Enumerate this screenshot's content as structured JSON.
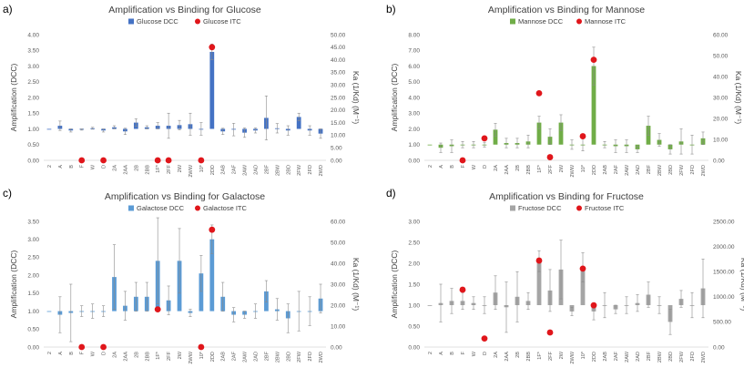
{
  "chart_data": [
    {
      "type": "bar",
      "panel_label": "a)",
      "title": "Amplification vs Binding for Glucose",
      "legend": [
        "Glucose DCC",
        "Glucose ITC"
      ],
      "colors": {
        "bar": "#4472c4",
        "itc": "#e0161b"
      },
      "ylabel": "Amplification (DCC)",
      "y2label": "Ka (1/Kd) (M⁻¹)",
      "ylim": [
        0,
        4
      ],
      "yticks": [
        "0.00",
        "0.50",
        "1.00",
        "1.50",
        "2.00",
        "2.50",
        "3.00",
        "3.50",
        "4.00"
      ],
      "y2lim": [
        0,
        50
      ],
      "y2ticks": [
        "0.00",
        "5.00",
        "10.00",
        "15.00",
        "20.00",
        "25.00",
        "30.00",
        "35.00",
        "40.00",
        "45.00",
        "50.00"
      ],
      "categories": [
        "2",
        "A",
        "B",
        "F",
        "W",
        "D",
        "2A",
        "2AA",
        "2B",
        "2BB",
        "1F*",
        "2FF",
        "2W",
        "2WW",
        "10*",
        "2DD",
        "2AB",
        "2AF",
        "2AW",
        "2AD",
        "2BF",
        "2BW",
        "2BD",
        "2FW",
        "2FD",
        "2WD"
      ],
      "values": [
        1.0,
        1.1,
        0.95,
        0.98,
        1.02,
        0.95,
        1.05,
        0.92,
        1.2,
        1.05,
        1.1,
        1.1,
        1.12,
        1.15,
        1.0,
        3.45,
        0.92,
        0.98,
        0.88,
        0.95,
        1.35,
        1.02,
        0.95,
        1.38,
        0.95,
        0.85
      ],
      "errors": [
        0,
        0.15,
        0.05,
        0.02,
        0.03,
        0.05,
        0.05,
        0.1,
        0.12,
        0.05,
        0.1,
        0.4,
        0.15,
        0.35,
        0.2,
        0.25,
        0.1,
        0.2,
        0.15,
        0.08,
        0.7,
        0.15,
        0.15,
        0.12,
        0.15,
        0.15
      ],
      "itc": [
        {
          "category": "F",
          "value": 0
        },
        {
          "category": "D",
          "value": 0
        },
        {
          "category": "1F*",
          "value": 0
        },
        {
          "category": "2FF",
          "value": 0
        },
        {
          "category": "10*",
          "value": 0
        },
        {
          "category": "2DD",
          "value": 45
        }
      ]
    },
    {
      "type": "bar",
      "panel_label": "b)",
      "title": "Amplification vs Binding for Mannose",
      "legend": [
        "Mannose DCC",
        "Mannose ITC"
      ],
      "colors": {
        "bar": "#70ad47",
        "itc": "#e0161b"
      },
      "ylabel": "Amplification (DCC)",
      "y2label": "Ka (1/Kd) (M⁻¹)",
      "ylim": [
        0,
        8
      ],
      "yticks": [
        "0.00",
        "1.00",
        "2.00",
        "3.00",
        "4.00",
        "5.00",
        "6.00",
        "7.00",
        "8.00"
      ],
      "y2lim": [
        0,
        60
      ],
      "y2ticks": [
        "0.00",
        "10.00",
        "20.00",
        "30.00",
        "40.00",
        "50.00",
        "60.00"
      ],
      "categories": [
        "2",
        "A",
        "B",
        "F",
        "W",
        "D",
        "2A",
        "2AA",
        "2B",
        "2BB",
        "1F*",
        "2FF",
        "2W",
        "2WW",
        "10*",
        "2DD",
        "2AB",
        "2AF",
        "2AW",
        "2AD",
        "2BF",
        "2BW",
        "2BD",
        "2FW",
        "2FD",
        "2WD"
      ],
      "values": [
        1.0,
        0.8,
        0.9,
        1.0,
        1.0,
        1.0,
        1.95,
        1.1,
        1.1,
        1.2,
        2.4,
        1.5,
        2.4,
        1.0,
        1.0,
        6.0,
        1.0,
        0.9,
        0.9,
        0.7,
        2.2,
        1.3,
        0.7,
        1.2,
        1.0,
        1.4
      ],
      "errors": [
        0,
        0.3,
        0.4,
        0.2,
        0.2,
        0.15,
        0.4,
        0.3,
        0.3,
        0.4,
        0.4,
        0.5,
        0.5,
        0.3,
        0.4,
        1.2,
        0.2,
        0.4,
        0.4,
        0.2,
        0.6,
        0.4,
        0.3,
        0.8,
        0.6,
        0.4
      ],
      "itc": [
        {
          "category": "F",
          "value": 0
        },
        {
          "category": "D",
          "value": 10.5
        },
        {
          "category": "1F*",
          "value": 32
        },
        {
          "category": "2FF",
          "value": 1.5
        },
        {
          "category": "10*",
          "value": 11.5
        },
        {
          "category": "2DD",
          "value": 48
        }
      ]
    },
    {
      "type": "bar",
      "panel_label": "c)",
      "title": "Amplification vs Binding for Galactose",
      "legend": [
        "Galactose DCC",
        "Galactose ITC"
      ],
      "colors": {
        "bar": "#5b9bd5",
        "itc": "#e0161b"
      },
      "ylabel": "Amplification (DCC)",
      "y2label": "Ka (1/Kd) (M⁻¹)",
      "ylim": [
        0,
        3.5
      ],
      "yticks": [
        "0.00",
        "0.50",
        "1.00",
        "1.50",
        "2.00",
        "2.50",
        "3.00",
        "3.50"
      ],
      "y2lim": [
        0,
        60
      ],
      "y2ticks": [
        "0.00",
        "10.00",
        "20.00",
        "30.00",
        "40.00",
        "50.00",
        "60.00"
      ],
      "categories": [
        "2",
        "A",
        "B",
        "F",
        "W",
        "D",
        "2A",
        "2AA",
        "2B",
        "2BB",
        "1F*",
        "2FF",
        "2W",
        "2WW",
        "10*",
        "2DD",
        "2AB",
        "2AF",
        "2AW",
        "2AD",
        "2BF",
        "2BW",
        "2BD",
        "2FW",
        "2FD",
        "2WD"
      ],
      "values": [
        1.0,
        0.9,
        0.95,
        1.0,
        1.0,
        1.0,
        1.95,
        1.15,
        1.4,
        1.4,
        2.4,
        1.3,
        2.4,
        0.95,
        2.05,
        3.0,
        1.4,
        0.9,
        0.9,
        1.0,
        1.55,
        1.05,
        0.8,
        1.0,
        1.0,
        1.35
      ],
      "errors": [
        0,
        0.5,
        0.8,
        0.15,
        0.2,
        0.15,
        0.9,
        0.4,
        0.4,
        0.4,
        1.2,
        0.4,
        0.9,
        0.1,
        0.5,
        0.4,
        0.4,
        0.2,
        0.1,
        0.2,
        0.3,
        0.3,
        0.4,
        0.55,
        0.4,
        0.4
      ],
      "itc": [
        {
          "category": "F",
          "value": 0
        },
        {
          "category": "D",
          "value": 0
        },
        {
          "category": "1F*",
          "value": 18
        },
        {
          "category": "10*",
          "value": 0
        },
        {
          "category": "2DD",
          "value": 56
        }
      ]
    },
    {
      "type": "bar",
      "panel_label": "d)",
      "title": "Amplification vs Binding for Fructose",
      "legend": [
        "Fructose DCC",
        "Fructose ITC"
      ],
      "colors": {
        "bar": "#a5a5a5",
        "itc": "#e0161b"
      },
      "ylabel": "Amplification (DCC)",
      "y2label": "Ka (1/Kd) (M⁻¹)",
      "ylim": [
        0,
        3
      ],
      "yticks": [
        "0.00",
        "0.50",
        "1.00",
        "1.50",
        "2.00",
        "2.50",
        "3.00"
      ],
      "y2lim": [
        0,
        2500
      ],
      "y2ticks": [
        "0.00",
        "500.00",
        "1000.00",
        "1500.00",
        "2000.00",
        "2500.00"
      ],
      "categories": [
        "2",
        "A",
        "B",
        "F",
        "W",
        "D",
        "2A",
        "2AA",
        "2B",
        "2BB",
        "1F*",
        "2FF",
        "2W",
        "2WW",
        "10*",
        "2DD",
        "2AB",
        "2AF",
        "2AW",
        "2AD",
        "2BF",
        "2BW",
        "2BD",
        "2FW",
        "2FD",
        "2WD"
      ],
      "values": [
        1.0,
        1.05,
        1.1,
        1.1,
        1.05,
        1.0,
        1.3,
        0.95,
        1.2,
        1.1,
        2.05,
        1.35,
        1.85,
        0.85,
        1.9,
        0.85,
        1.0,
        0.9,
        1.0,
        1.05,
        1.25,
        1.0,
        0.6,
        1.15,
        1.0,
        1.4
      ],
      "errors": [
        0,
        0.45,
        0.3,
        0.2,
        0.15,
        0.2,
        0.4,
        0.6,
        0.6,
        0.2,
        0.25,
        0.5,
        0.7,
        0.1,
        0.35,
        0.2,
        0.3,
        0.1,
        0.2,
        0.2,
        0.3,
        0.2,
        0.3,
        0.2,
        0.3,
        0.7
      ],
      "itc": [
        {
          "category": "F",
          "value": 1140
        },
        {
          "category": "D",
          "value": 170
        },
        {
          "category": "1F*",
          "value": 1720
        },
        {
          "category": "2FF",
          "value": 290
        },
        {
          "category": "10*",
          "value": 1560
        },
        {
          "category": "2DD",
          "value": 830
        }
      ]
    }
  ]
}
